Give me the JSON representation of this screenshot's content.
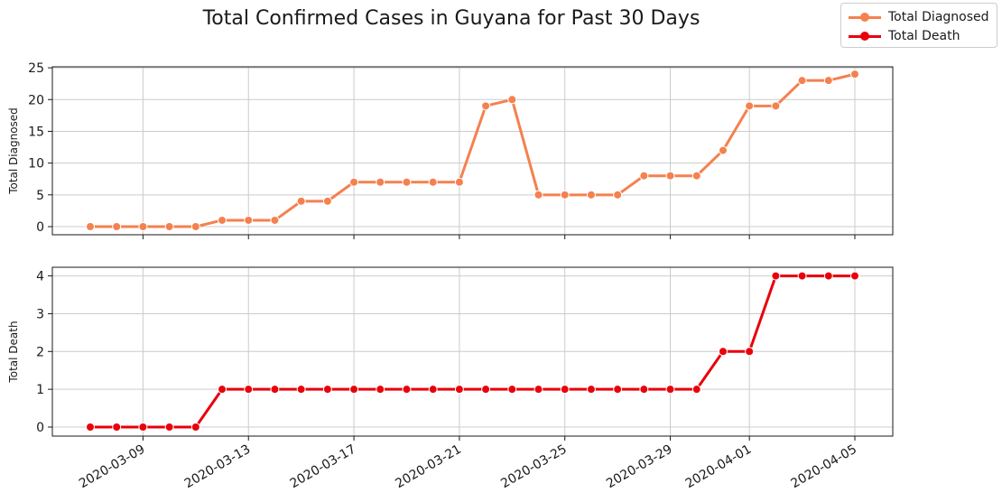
{
  "chart_data": [
    {
      "type": "line",
      "title": "Total Confirmed Cases in Guyana for Past 30 Days",
      "xlabel": "",
      "ylabel": "Total Diagnosed",
      "ylim": [
        -1.2,
        25
      ],
      "yticks": [
        0,
        5,
        10,
        15,
        20,
        25
      ],
      "x": [
        "2020-03-07",
        "2020-03-08",
        "2020-03-09",
        "2020-03-10",
        "2020-03-11",
        "2020-03-12",
        "2020-03-13",
        "2020-03-14",
        "2020-03-15",
        "2020-03-16",
        "2020-03-17",
        "2020-03-18",
        "2020-03-19",
        "2020-03-20",
        "2020-03-21",
        "2020-03-22",
        "2020-03-23",
        "2020-03-24",
        "2020-03-25",
        "2020-03-26",
        "2020-03-27",
        "2020-03-28",
        "2020-03-29",
        "2020-03-30",
        "2020-03-31",
        "2020-04-01",
        "2020-04-02",
        "2020-04-03",
        "2020-04-04",
        "2020-04-05"
      ],
      "series": [
        {
          "name": "Total Diagnosed",
          "color": "#f4814f",
          "values": [
            0,
            0,
            0,
            0,
            0,
            1,
            1,
            1,
            4,
            4,
            7,
            7,
            7,
            7,
            7,
            19,
            20,
            5,
            5,
            5,
            5,
            8,
            8,
            8,
            12,
            19,
            19,
            23,
            23,
            24
          ]
        }
      ],
      "grid": true,
      "legend": "top-right"
    },
    {
      "type": "line",
      "title": "",
      "xlabel": "",
      "ylabel": "Total Death",
      "ylim": [
        -0.2,
        4.2
      ],
      "yticks": [
        0,
        1,
        2,
        3,
        4
      ],
      "x": [
        "2020-03-07",
        "2020-03-08",
        "2020-03-09",
        "2020-03-10",
        "2020-03-11",
        "2020-03-12",
        "2020-03-13",
        "2020-03-14",
        "2020-03-15",
        "2020-03-16",
        "2020-03-17",
        "2020-03-18",
        "2020-03-19",
        "2020-03-20",
        "2020-03-21",
        "2020-03-22",
        "2020-03-23",
        "2020-03-24",
        "2020-03-25",
        "2020-03-26",
        "2020-03-27",
        "2020-03-28",
        "2020-03-29",
        "2020-03-30",
        "2020-03-31",
        "2020-04-01",
        "2020-04-02",
        "2020-04-03",
        "2020-04-04",
        "2020-04-05"
      ],
      "series": [
        {
          "name": "Total Death",
          "color": "#e8000b",
          "values": [
            0,
            0,
            0,
            0,
            0,
            1,
            1,
            1,
            1,
            1,
            1,
            1,
            1,
            1,
            1,
            1,
            1,
            1,
            1,
            1,
            1,
            1,
            1,
            1,
            2,
            2,
            4,
            4,
            4,
            4
          ]
        }
      ],
      "grid": true,
      "xticks": [
        "2020-03-09",
        "2020-03-13",
        "2020-03-17",
        "2020-03-21",
        "2020-03-25",
        "2020-03-29",
        "2020-04-01",
        "2020-04-05"
      ]
    }
  ]
}
